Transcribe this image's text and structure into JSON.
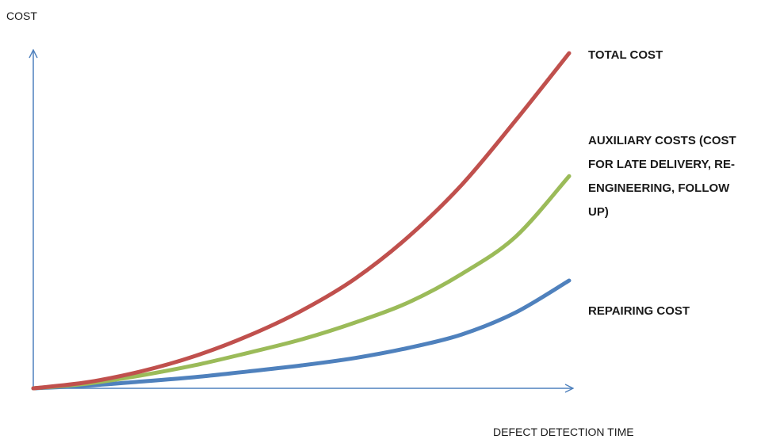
{
  "chart_data": {
    "type": "line",
    "title": "",
    "xlabel": "DEFECT DETECTION TIME",
    "ylabel": "COST",
    "xlim": [
      0,
      10
    ],
    "ylim": [
      0,
      10
    ],
    "grid": false,
    "axis_color": "#4f81bd",
    "series": [
      {
        "name": "TOTAL COST",
        "label_lines": [
          "TOTAL COST"
        ],
        "color": "#c0504d",
        "x": [
          0,
          1,
          2,
          3,
          4,
          5,
          6,
          7,
          8,
          9,
          10
        ],
        "y": [
          0,
          0.18,
          0.5,
          0.95,
          1.55,
          2.3,
          3.25,
          4.5,
          6.05,
          7.95,
          9.95
        ]
      },
      {
        "name": "AUXILIARY COSTS (COST FOR LATE DELIVERY, RE-ENGINEERING, FOLLOW UP)",
        "label_lines": [
          "AUXILIARY COSTS (COST",
          "FOR LATE DELIVERY, RE-",
          "ENGINEERING, FOLLOW",
          "UP)"
        ],
        "color": "#9bbb59",
        "x": [
          0,
          1,
          2,
          3,
          4,
          5,
          6,
          7,
          8,
          9,
          10
        ],
        "y": [
          0,
          0.14,
          0.38,
          0.68,
          1.05,
          1.45,
          1.95,
          2.55,
          3.4,
          4.5,
          6.3
        ]
      },
      {
        "name": "REPAIRING COST",
        "label_lines": [
          "REPAIRING COST"
        ],
        "color": "#4f81bd",
        "x": [
          0,
          1,
          2,
          3,
          4,
          5,
          6,
          7,
          8,
          9,
          10
        ],
        "y": [
          0,
          0.08,
          0.2,
          0.33,
          0.5,
          0.68,
          0.9,
          1.2,
          1.6,
          2.25,
          3.2
        ]
      }
    ]
  }
}
